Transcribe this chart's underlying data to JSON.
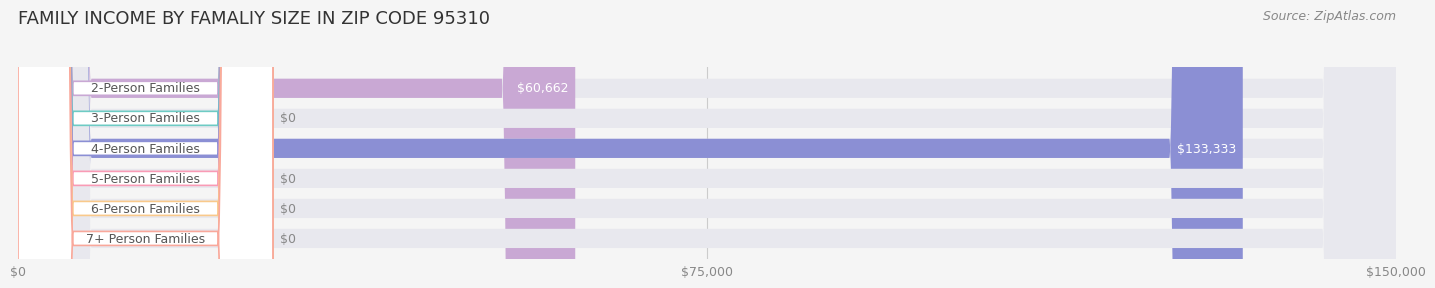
{
  "title": "FAMILY INCOME BY FAMALIY SIZE IN ZIP CODE 95310",
  "source": "Source: ZipAtlas.com",
  "categories": [
    "2-Person Families",
    "3-Person Families",
    "4-Person Families",
    "5-Person Families",
    "6-Person Families",
    "7+ Person Families"
  ],
  "values": [
    60662,
    0,
    133333,
    0,
    0,
    0
  ],
  "bar_colors": [
    "#c9a8d4",
    "#6ecbc4",
    "#8b8fd4",
    "#f99bb5",
    "#f9c98b",
    "#f9a89b"
  ],
  "label_colors": [
    "#c9a8d4",
    "#6ecbc4",
    "#8b8fd4",
    "#f99bb5",
    "#f9c98b",
    "#f9a89b"
  ],
  "value_labels": [
    "$60,662",
    "$0",
    "$133,333",
    "$0",
    "$0",
    "$0"
  ],
  "xlim": [
    0,
    150000
  ],
  "xticks": [
    0,
    75000,
    150000
  ],
  "xticklabels": [
    "$0",
    "$75,000",
    "$150,000"
  ],
  "background_color": "#f5f5f5",
  "bar_bg_color": "#e8e8ee",
  "title_fontsize": 13,
  "source_fontsize": 9,
  "label_fontsize": 9,
  "value_fontsize": 9
}
